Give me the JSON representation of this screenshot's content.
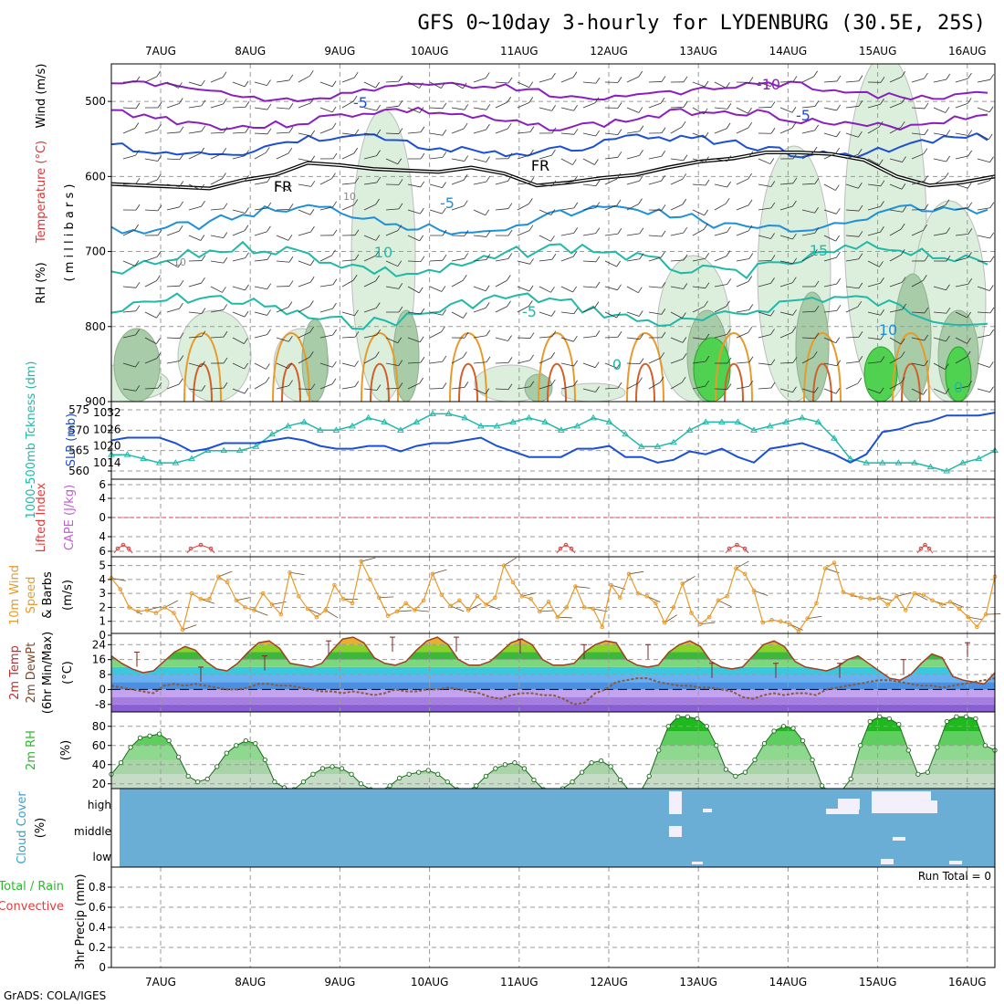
{
  "title": "GFS 0~10day 3-hourly for LYDENBURG (30.5E, 25S)",
  "footer": "GrADS: COLA/IGES",
  "colors": {
    "temp_warm": "#e89a2a",
    "temp_hot": "#d2602a",
    "wind_contour": "#1a4fd6",
    "purple": "#8a1fbf",
    "teal": "#22b8a8",
    "cloud": "#6aaed6",
    "rh_fill": "#8fd88f",
    "rh_dark": "#2db82d"
  },
  "chart_data": [
    {
      "type": "heatmap",
      "panel": "upper-air",
      "ylabel_parts": [
        "RH (%)",
        "Temperature (°C)",
        "Wind (m/s)"
      ],
      "ylabel2": "( m i l l i b a r s )",
      "x": [
        "7AUG",
        "8AUG",
        "9AUG",
        "10AUG",
        "11AUG",
        "12AUG",
        "13AUG",
        "14AUG",
        "15AUG",
        "16AUG"
      ],
      "y_ticks": [
        500,
        600,
        700,
        800,
        900
      ],
      "ylim": [
        450,
        900
      ],
      "contour_labels": [
        "-10",
        "-5",
        "-5",
        "FR",
        "FR",
        "-5",
        "10",
        "10",
        "10",
        "15",
        "-5",
        "10",
        "0",
        "0"
      ],
      "freezing_level": [
        610,
        612,
        614,
        616,
        605,
        598,
        582,
        585,
        590,
        592,
        594,
        588,
        596,
        612,
        608,
        602,
        598,
        588,
        580,
        576,
        568,
        568,
        570,
        578,
        600,
        612,
        608,
        600
      ]
    },
    {
      "type": "line",
      "panel": "thickness-slp",
      "ylabel_left": "1000-500mb Tckness (dm)",
      "ylabel_right": "SLP (mb)",
      "left_ticks": [
        560,
        565,
        570,
        575
      ],
      "right_ticks": [
        1014,
        1020,
        1026,
        1032
      ],
      "x": [
        "7AUG",
        "8AUG",
        "9AUG",
        "10AUG",
        "11AUG",
        "12AUG",
        "13AUG",
        "14AUG",
        "15AUG",
        "16AUG"
      ],
      "thickness": [
        564,
        564,
        563,
        562,
        562,
        563,
        565,
        565,
        565,
        566,
        569,
        571,
        572,
        570,
        570,
        571,
        573,
        572,
        570,
        572,
        574,
        574,
        573,
        571,
        571,
        572,
        573,
        572,
        570,
        571,
        573,
        572,
        569,
        566,
        566,
        567,
        570,
        572,
        572,
        572,
        570,
        571,
        572,
        573,
        572,
        568,
        563,
        562,
        562,
        562,
        562,
        561,
        560,
        562,
        563,
        565
      ],
      "slp": [
        1022,
        1023,
        1023,
        1023,
        1021,
        1018,
        1019,
        1021,
        1021,
        1021,
        1022,
        1023,
        1022,
        1020,
        1019,
        1019,
        1020,
        1020,
        1018,
        1020,
        1021,
        1021,
        1022,
        1023,
        1020,
        1018,
        1016,
        1016,
        1016,
        1019,
        1019,
        1020,
        1016,
        1016,
        1014,
        1015,
        1018,
        1017,
        1019,
        1016,
        1014,
        1019,
        1020,
        1021,
        1019,
        1017,
        1014,
        1017,
        1025,
        1026,
        1028,
        1029,
        1031,
        1031,
        1031,
        1032
      ]
    },
    {
      "type": "line",
      "panel": "stability",
      "ylabel_parts": [
        "CAPE (J/kg)",
        "Lifted Index"
      ],
      "y_ticks": [
        "6",
        "4",
        "0",
        "4",
        "6"
      ],
      "li_series": "flat at bottom with small bumps"
    },
    {
      "type": "line",
      "panel": "wind-10m",
      "ylabel_parts": [
        "10m Wind",
        "Speed",
        "& Barbs",
        "(m/s)"
      ],
      "y_ticks": [
        0,
        1,
        2,
        3,
        4,
        5
      ],
      "ylim": [
        0,
        5.5
      ],
      "values": [
        4.1,
        3.3,
        2.0,
        1.7,
        1.8,
        1.6,
        2.0,
        1.6,
        0.4,
        3.0,
        2.6,
        2.6,
        4.2,
        3.8,
        2.5,
        2.0,
        1.8,
        3.0,
        2.2,
        1.5,
        4.5,
        2.8,
        1.9,
        1.3,
        1.8,
        3.6,
        2.6,
        2.3,
        5.3,
        4.0,
        2.7,
        1.4,
        1.7,
        2.3,
        1.8,
        2.5,
        4.4,
        2.9,
        2.1,
        2.5,
        1.8,
        2.8,
        2.2,
        2.7,
        5.0,
        3.8,
        2.8,
        2.6,
        1.7,
        2.4,
        1.3,
        2.0,
        3.5,
        2.0,
        1.9,
        0.6,
        3.6,
        2.7,
        4.4,
        3.0,
        2.8,
        2.3,
        0.9,
        2.0,
        3.7,
        1.6,
        0.8,
        1.3,
        2.5,
        2.8,
        4.8,
        4.4,
        3.2,
        0.9,
        1.1,
        1.0,
        0.8,
        0.3,
        1.2,
        2.3,
        4.8,
        5.2,
        3.1,
        2.9,
        2.7,
        2.6,
        2.7,
        2.2,
        2.8,
        1.8,
        3.0,
        2.9,
        2.5,
        2.2,
        2.4,
        1.9,
        1.3,
        0.6,
        1.5,
        4.2
      ]
    },
    {
      "type": "area",
      "panel": "temp-dewpt",
      "ylabel_parts": [
        "2m Temp",
        "2m DewPt",
        "(6hr Min/Max)",
        "(°C)"
      ],
      "y_ticks": [
        -8,
        0,
        8,
        16,
        24
      ],
      "ylim": [
        -12,
        30
      ],
      "temp": [
        18,
        14,
        11,
        9,
        10,
        15,
        20,
        23,
        21,
        15,
        11,
        10,
        14,
        20,
        25,
        26,
        22,
        14,
        13,
        12,
        14,
        21,
        27,
        28,
        25,
        17,
        14,
        13,
        15,
        21,
        26,
        28,
        24,
        16,
        13,
        13,
        15,
        20,
        25,
        27,
        24,
        16,
        13,
        13,
        14,
        20,
        24,
        26,
        25,
        16,
        13,
        12,
        13,
        20,
        24,
        26,
        23,
        15,
        12,
        11,
        12,
        18,
        24,
        26,
        23,
        15,
        12,
        11,
        10,
        12,
        16,
        18,
        14,
        10,
        6,
        5,
        8,
        14,
        19,
        17,
        7,
        5,
        4,
        3,
        9
      ],
      "dewpt": [
        2,
        1,
        0,
        -1,
        -2,
        2,
        3,
        2,
        3,
        2,
        1,
        0,
        0,
        1,
        3,
        3,
        2,
        2,
        1,
        0,
        -1,
        -1,
        -2,
        -1,
        -2,
        -3,
        -2,
        0,
        -1,
        -1,
        0,
        0,
        1,
        0,
        -1,
        -2,
        -4,
        -5,
        -3,
        -2,
        -2,
        -3,
        -3,
        -5,
        -8,
        -7,
        -2,
        0,
        4,
        5,
        6,
        6,
        4,
        3,
        2,
        2,
        1,
        1,
        0,
        -1,
        -4,
        -5,
        -3,
        -2,
        -3,
        -2,
        -2,
        -3,
        0,
        1,
        2,
        3,
        4,
        5,
        5,
        4,
        3,
        2,
        2,
        1,
        2,
        3,
        4,
        5,
        6
      ],
      "max_bars": [
        20,
        12,
        18,
        26,
        28,
        28,
        27,
        24,
        24,
        14,
        14,
        14,
        16,
        25
      ]
    },
    {
      "type": "area",
      "panel": "rh-2m",
      "ylabel_parts": [
        "2m RH",
        "(%)"
      ],
      "y_ticks": [
        20,
        40,
        60,
        80
      ],
      "ylim": [
        15,
        95
      ],
      "values": [
        30,
        42,
        58,
        68,
        70,
        72,
        65,
        48,
        28,
        22,
        25,
        38,
        52,
        60,
        65,
        62,
        45,
        22,
        16,
        14,
        22,
        30,
        36,
        38,
        36,
        30,
        20,
        14,
        12,
        18,
        26,
        30,
        32,
        34,
        30,
        22,
        14,
        12,
        18,
        28,
        36,
        40,
        42,
        36,
        24,
        14,
        12,
        15,
        22,
        32,
        42,
        44,
        38,
        24,
        12,
        10,
        28,
        55,
        80,
        90,
        90,
        88,
        80,
        60,
        35,
        28,
        32,
        45,
        62,
        75,
        80,
        78,
        65,
        45,
        18,
        10,
        12,
        25,
        60,
        85,
        90,
        88,
        82,
        55,
        30,
        32,
        58,
        85,
        90,
        90,
        88,
        60,
        55
      ]
    },
    {
      "type": "heatmap",
      "panel": "cloud-cover",
      "ylabel_parts": [
        "Cloud Cover",
        "(%)"
      ],
      "y_ticks": [
        "high",
        "middle",
        "low"
      ]
    },
    {
      "type": "line",
      "panel": "precip",
      "ylabel_parts": [
        "Total / Rain",
        "Convective",
        "3hr Precip (mm)"
      ],
      "y_ticks": [
        "0",
        "0.2",
        "0.4",
        "0.6",
        "0.8"
      ],
      "ylim": [
        0,
        1
      ],
      "run_total_label": "Run Total = 0",
      "values": []
    }
  ]
}
